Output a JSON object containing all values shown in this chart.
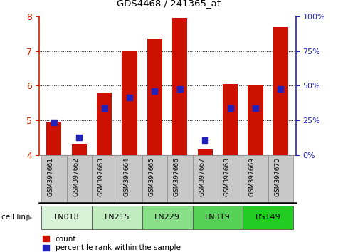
{
  "title": "GDS4468 / 241365_at",
  "samples": [
    "GSM397661",
    "GSM397662",
    "GSM397663",
    "GSM397664",
    "GSM397665",
    "GSM397666",
    "GSM397667",
    "GSM397668",
    "GSM397669",
    "GSM397670"
  ],
  "red_tops": [
    4.93,
    4.32,
    5.8,
    7.0,
    7.35,
    7.95,
    4.15,
    6.05,
    6.0,
    7.7
  ],
  "blue_vals": [
    4.93,
    4.5,
    5.35,
    5.65,
    5.85,
    5.9,
    4.43,
    5.35,
    5.35,
    5.9
  ],
  "ymin": 4.0,
  "ymax": 8.0,
  "yticks_left": [
    4,
    5,
    6,
    7,
    8
  ],
  "yticks_right_vals": [
    0,
    25,
    50,
    75,
    100
  ],
  "yticks_right_labels": [
    "0%",
    "25%",
    "50%",
    "75%",
    "100%"
  ],
  "bar_color": "#cc1100",
  "blue_color": "#2222bb",
  "bar_width": 0.6,
  "blue_size": 40,
  "tick_color_left": "#cc2200",
  "tick_color_right": "#2222bb",
  "grid_color": "#111111",
  "label_bg_color": "#c8c8c8",
  "cell_groups": [
    {
      "label": "LN018",
      "start": 0,
      "end": 1,
      "color": "#d8f2d8"
    },
    {
      "label": "LN215",
      "start": 2,
      "end": 3,
      "color": "#c0ecc0"
    },
    {
      "label": "LN229",
      "start": 4,
      "end": 5,
      "color": "#88df88"
    },
    {
      "label": "LN319",
      "start": 6,
      "end": 7,
      "color": "#55d255"
    },
    {
      "label": "BS149",
      "start": 8,
      "end": 9,
      "color": "#22cc22"
    }
  ],
  "legend_red": "count",
  "legend_blue": "percentile rank within the sample"
}
